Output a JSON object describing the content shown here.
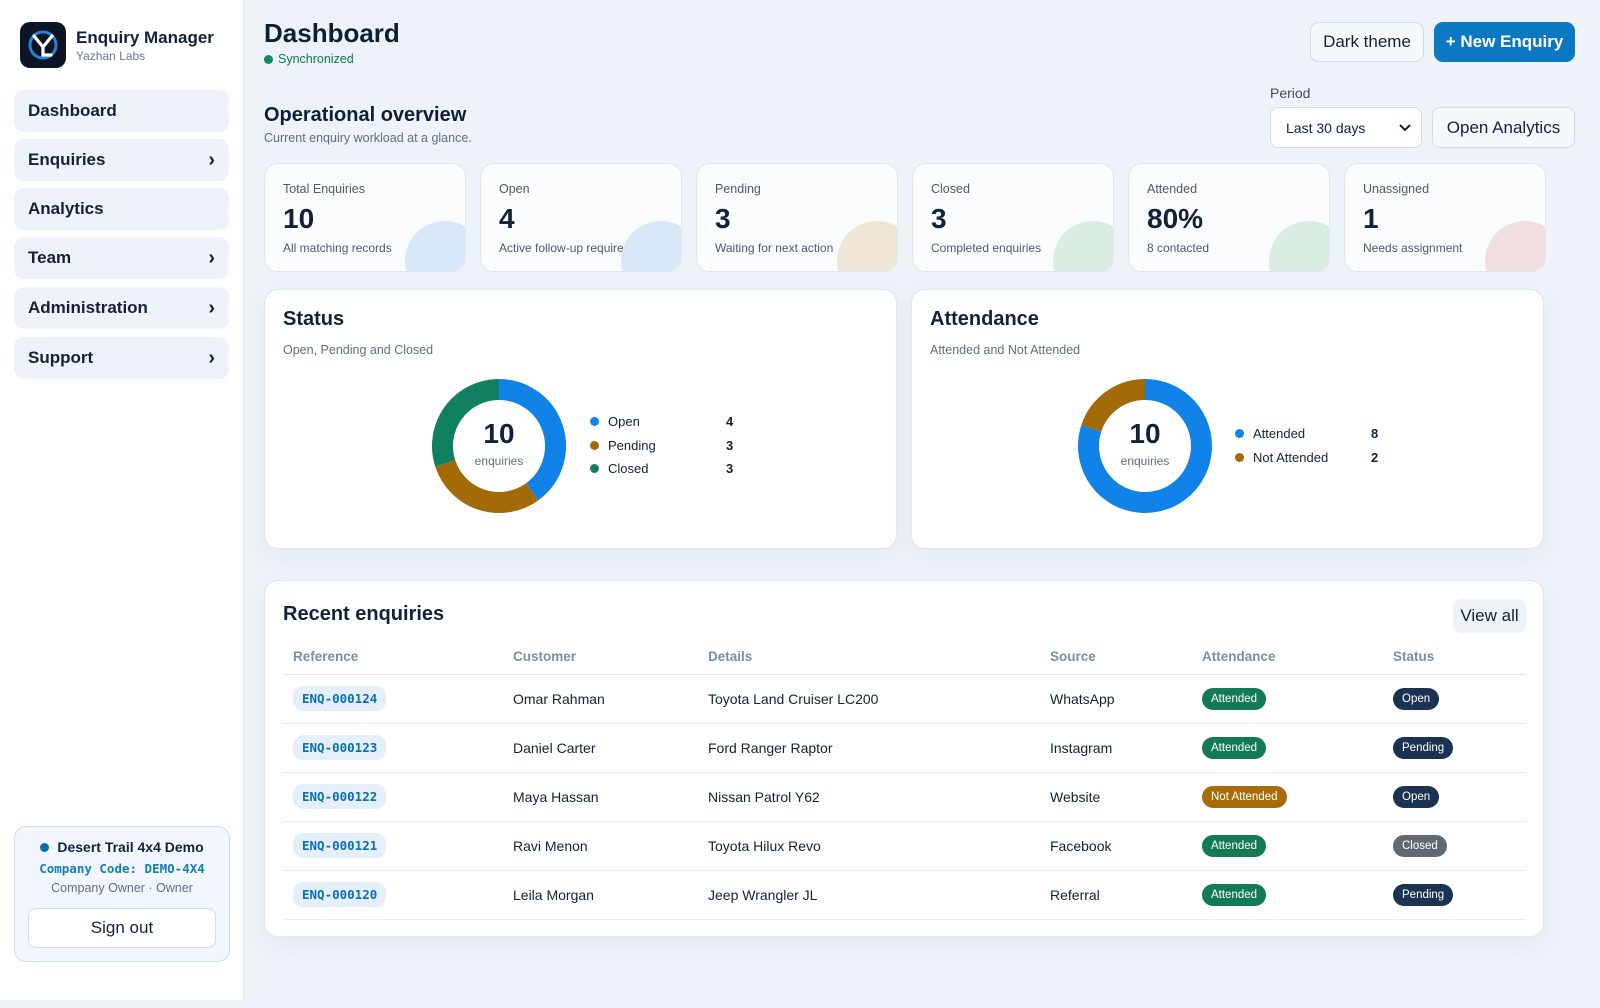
{
  "brand": {
    "title": "Enquiry Manager",
    "subtitle": "Yazhan Labs",
    "logo_icon": "yl-logo-icon"
  },
  "sidebar": {
    "items": [
      {
        "label": "Dashboard",
        "has_children": false
      },
      {
        "label": "Enquiries",
        "has_children": true
      },
      {
        "label": "Analytics",
        "has_children": false
      },
      {
        "label": "Team",
        "has_children": true
      },
      {
        "label": "Administration",
        "has_children": true
      },
      {
        "label": "Support",
        "has_children": true
      }
    ],
    "account": {
      "name": "Desert Trail 4x4 Demo",
      "code": "Company Code: DEMO-4X4",
      "role": "Company Owner · Owner",
      "signout_label": "Sign out"
    }
  },
  "header": {
    "title": "Dashboard",
    "sync_status": "Synchronized",
    "theme_button": "Dark theme",
    "new_button": "+ New Enquiry"
  },
  "overview": {
    "title": "Operational overview",
    "subtitle": "Current enquiry workload at a glance.",
    "period_label": "Period",
    "period_value": "Last 30 days",
    "analytics_button": "Open Analytics"
  },
  "kpis": [
    {
      "label": "Total Enquiries",
      "value": "10",
      "sub": "All matching records",
      "color": "#d7e8f8"
    },
    {
      "label": "Open",
      "value": "4",
      "sub": "Active follow-up required",
      "color": "#d7e8f8"
    },
    {
      "label": "Pending",
      "value": "3",
      "sub": "Waiting for next action",
      "color": "#efe6d6"
    },
    {
      "label": "Closed",
      "value": "3",
      "sub": "Completed enquiries",
      "color": "#d9ede3"
    },
    {
      "label": "Attended",
      "value": "80%",
      "sub": "8 contacted",
      "color": "#d9ede3"
    },
    {
      "label": "Unassigned",
      "value": "1",
      "sub": "Needs assignment",
      "color": "#f1dede"
    }
  ],
  "status_chart": {
    "title": "Status",
    "subtitle": "Open, Pending and Closed",
    "total": "10",
    "total_label": "enquiries",
    "segments": [
      {
        "name": "Open",
        "value": 4,
        "color": "#1183e8"
      },
      {
        "name": "Pending",
        "value": 3,
        "color": "#a36a08"
      },
      {
        "name": "Closed",
        "value": 3,
        "color": "#118060"
      }
    ]
  },
  "attendance_chart": {
    "title": "Attendance",
    "subtitle": "Attended and Not Attended",
    "total": "10",
    "total_label": "enquiries",
    "segments": [
      {
        "name": "Attended",
        "value": 8,
        "color": "#1183e8"
      },
      {
        "name": "Not Attended",
        "value": 2,
        "color": "#a36a08"
      }
    ]
  },
  "recent": {
    "title": "Recent enquiries",
    "view_all": "View all",
    "columns": [
      "Reference",
      "Customer",
      "Details",
      "Source",
      "Attendance",
      "Status"
    ],
    "rows": [
      {
        "ref": "ENQ-000124",
        "customer": "Omar Rahman",
        "details": "Toyota Land Cruiser LC200",
        "source": "WhatsApp",
        "attendance": "Attended",
        "status": "Open"
      },
      {
        "ref": "ENQ-000123",
        "customer": "Daniel Carter",
        "details": "Ford Ranger Raptor",
        "source": "Instagram",
        "attendance": "Attended",
        "status": "Pending"
      },
      {
        "ref": "ENQ-000122",
        "customer": "Maya Hassan",
        "details": "Nissan Patrol Y62",
        "source": "Website",
        "attendance": "Not Attended",
        "status": "Open"
      },
      {
        "ref": "ENQ-000121",
        "customer": "Ravi Menon",
        "details": "Toyota Hilux Revo",
        "source": "Facebook",
        "attendance": "Attended",
        "status": "Closed"
      },
      {
        "ref": "ENQ-000120",
        "customer": "Leila Morgan",
        "details": "Jeep Wrangler JL",
        "source": "Referral",
        "attendance": "Attended",
        "status": "Pending"
      }
    ]
  },
  "colors": {
    "accent": "#0d78c2",
    "background": "#eef3f9",
    "success": "#137a55",
    "warning": "#a86d0a"
  }
}
